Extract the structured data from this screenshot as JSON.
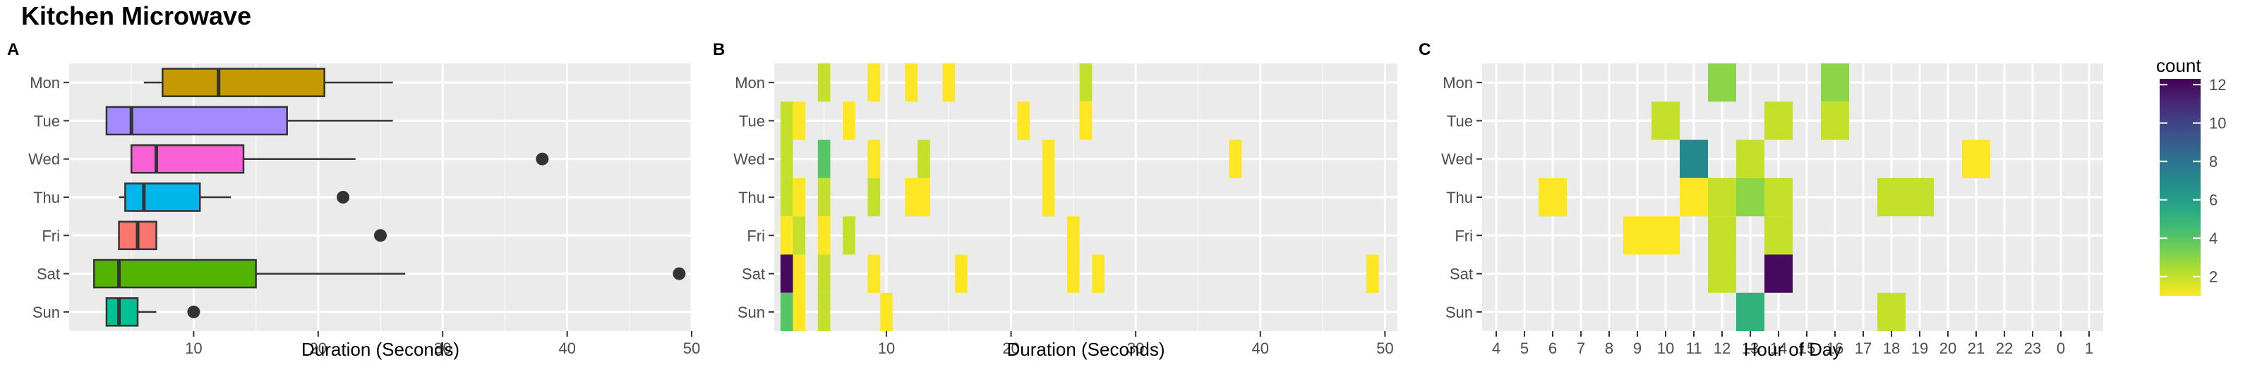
{
  "title": "Kitchen Microwave",
  "legend": {
    "title": "count",
    "ticks": [
      2,
      4,
      6,
      8,
      10,
      12
    ],
    "range": [
      1,
      12.3
    ]
  },
  "chart_data": [
    {
      "panel": "A",
      "type": "box",
      "categories": [
        "Mon",
        "Tue",
        "Wed",
        "Thu",
        "Fri",
        "Sat",
        "Sun"
      ],
      "xlabel": "Duration (Seconds)",
      "xlim": [
        0,
        50
      ],
      "xticks": [
        10,
        20,
        30,
        40,
        50
      ],
      "boxes": [
        {
          "day": "Mon",
          "color": "#C49A00",
          "whisker_low": 6,
          "q1": 7.5,
          "median": 12,
          "q3": 20.5,
          "whisker_high": 26,
          "outliers": []
        },
        {
          "day": "Tue",
          "color": "#A58AFF",
          "whisker_low": 3,
          "q1": 3,
          "median": 5,
          "q3": 17.5,
          "whisker_high": 26,
          "outliers": []
        },
        {
          "day": "Wed",
          "color": "#FB61D7",
          "whisker_low": 5,
          "q1": 5,
          "median": 7,
          "q3": 14,
          "whisker_high": 23,
          "outliers": [
            38
          ]
        },
        {
          "day": "Thu",
          "color": "#00B6EB",
          "whisker_low": 4,
          "q1": 4.5,
          "median": 6,
          "q3": 10.5,
          "whisker_high": 13,
          "outliers": [
            22
          ]
        },
        {
          "day": "Fri",
          "color": "#F8766D",
          "whisker_low": 4,
          "q1": 4,
          "median": 5.5,
          "q3": 7,
          "whisker_high": 7,
          "outliers": [
            25
          ]
        },
        {
          "day": "Sat",
          "color": "#53B400",
          "whisker_low": 2,
          "q1": 2,
          "median": 4,
          "q3": 15,
          "whisker_high": 27,
          "outliers": [
            49
          ]
        },
        {
          "day": "Sun",
          "color": "#00C094",
          "whisker_low": 3,
          "q1": 3,
          "median": 4,
          "q3": 5.5,
          "whisker_high": 7,
          "outliers": [
            10
          ]
        }
      ]
    },
    {
      "panel": "B",
      "type": "heatmap",
      "categories": [
        "Mon",
        "Tue",
        "Wed",
        "Thu",
        "Fri",
        "Sat",
        "Sun"
      ],
      "xlabel": "Duration (Seconds)",
      "xlim": [
        1,
        51
      ],
      "xticks": [
        10,
        20,
        30,
        40,
        50
      ],
      "cells": [
        {
          "day": "Mon",
          "x": 5,
          "count": 2
        },
        {
          "day": "Mon",
          "x": 9,
          "count": 1
        },
        {
          "day": "Mon",
          "x": 12,
          "count": 1
        },
        {
          "day": "Mon",
          "x": 15,
          "count": 1
        },
        {
          "day": "Mon",
          "x": 26,
          "count": 2
        },
        {
          "day": "Tue",
          "x": 2,
          "count": 2
        },
        {
          "day": "Tue",
          "x": 3,
          "count": 1
        },
        {
          "day": "Tue",
          "x": 7,
          "count": 1
        },
        {
          "day": "Tue",
          "x": 21,
          "count": 1
        },
        {
          "day": "Tue",
          "x": 26,
          "count": 1
        },
        {
          "day": "Wed",
          "x": 2,
          "count": 2
        },
        {
          "day": "Wed",
          "x": 5,
          "count": 4
        },
        {
          "day": "Wed",
          "x": 9,
          "count": 1
        },
        {
          "day": "Wed",
          "x": 13,
          "count": 2
        },
        {
          "day": "Wed",
          "x": 23,
          "count": 1
        },
        {
          "day": "Wed",
          "x": 38,
          "count": 1
        },
        {
          "day": "Thu",
          "x": 2,
          "count": 2
        },
        {
          "day": "Thu",
          "x": 3,
          "count": 1
        },
        {
          "day": "Thu",
          "x": 5,
          "count": 2
        },
        {
          "day": "Thu",
          "x": 9,
          "count": 2
        },
        {
          "day": "Thu",
          "x": 12,
          "count": 1
        },
        {
          "day": "Thu",
          "x": 13,
          "count": 1
        },
        {
          "day": "Thu",
          "x": 23,
          "count": 1
        },
        {
          "day": "Fri",
          "x": 2,
          "count": 1
        },
        {
          "day": "Fri",
          "x": 3,
          "count": 2
        },
        {
          "day": "Fri",
          "x": 5,
          "count": 1
        },
        {
          "day": "Fri",
          "x": 7,
          "count": 2
        },
        {
          "day": "Fri",
          "x": 25,
          "count": 1
        },
        {
          "day": "Sat",
          "x": 2,
          "count": 12
        },
        {
          "day": "Sat",
          "x": 3,
          "count": 1
        },
        {
          "day": "Sat",
          "x": 5,
          "count": 2
        },
        {
          "day": "Sat",
          "x": 9,
          "count": 1
        },
        {
          "day": "Sat",
          "x": 16,
          "count": 1
        },
        {
          "day": "Sat",
          "x": 25,
          "count": 1
        },
        {
          "day": "Sat",
          "x": 27,
          "count": 1
        },
        {
          "day": "Sat",
          "x": 49,
          "count": 1
        },
        {
          "day": "Sun",
          "x": 2,
          "count": 4
        },
        {
          "day": "Sun",
          "x": 3,
          "count": 1
        },
        {
          "day": "Sun",
          "x": 5,
          "count": 2
        },
        {
          "day": "Sun",
          "x": 10,
          "count": 1
        }
      ]
    },
    {
      "panel": "C",
      "type": "heatmap",
      "categories": [
        "Mon",
        "Tue",
        "Wed",
        "Thu",
        "Fri",
        "Sat",
        "Sun"
      ],
      "xlabel": "Hour of Day",
      "xticks": [
        "4",
        "5",
        "6",
        "7",
        "8",
        "9",
        "10",
        "11",
        "12",
        "13",
        "14",
        "15",
        "16",
        "17",
        "18",
        "19",
        "20",
        "21",
        "22",
        "23",
        "0",
        "1"
      ],
      "cells": [
        {
          "day": "Mon",
          "hour": "12",
          "count": 3
        },
        {
          "day": "Mon",
          "hour": "16",
          "count": 3
        },
        {
          "day": "Tue",
          "hour": "10",
          "count": 2
        },
        {
          "day": "Tue",
          "hour": "14",
          "count": 2
        },
        {
          "day": "Tue",
          "hour": "16",
          "count": 2
        },
        {
          "day": "Wed",
          "hour": "11",
          "count": 7
        },
        {
          "day": "Wed",
          "hour": "13",
          "count": 2
        },
        {
          "day": "Wed",
          "hour": "21",
          "count": 1
        },
        {
          "day": "Thu",
          "hour": "6",
          "count": 1
        },
        {
          "day": "Thu",
          "hour": "11",
          "count": 1
        },
        {
          "day": "Thu",
          "hour": "12",
          "count": 2
        },
        {
          "day": "Thu",
          "hour": "13",
          "count": 3
        },
        {
          "day": "Thu",
          "hour": "14",
          "count": 2
        },
        {
          "day": "Thu",
          "hour": "18",
          "count": 2
        },
        {
          "day": "Thu",
          "hour": "19",
          "count": 2
        },
        {
          "day": "Fri",
          "hour": "9",
          "count": 1
        },
        {
          "day": "Fri",
          "hour": "10",
          "count": 1
        },
        {
          "day": "Fri",
          "hour": "12",
          "count": 2
        },
        {
          "day": "Fri",
          "hour": "14",
          "count": 2
        },
        {
          "day": "Sat",
          "hour": "12",
          "count": 2
        },
        {
          "day": "Sat",
          "hour": "14",
          "count": 12
        },
        {
          "day": "Sun",
          "hour": "13",
          "count": 5
        },
        {
          "day": "Sun",
          "hour": "18",
          "count": 2
        }
      ]
    }
  ]
}
